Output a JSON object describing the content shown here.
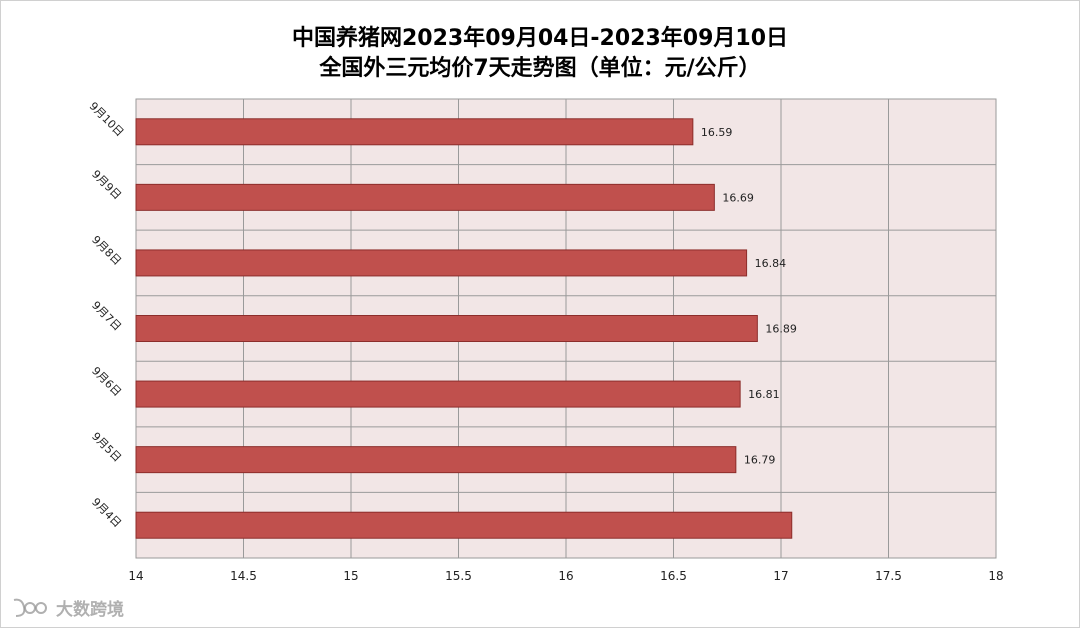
{
  "chart_data": {
    "type": "bar",
    "orientation": "horizontal",
    "title_lines": [
      "中国养猪网2023年09月04日-2023年09月10日",
      "全国外三元均价7天走势图（单位：元/公斤）"
    ],
    "categories": [
      "9月10日",
      "9月9日",
      "9月8日",
      "9月7日",
      "9月6日",
      "9月5日",
      "9月4日"
    ],
    "values": [
      16.59,
      16.69,
      16.84,
      16.89,
      16.81,
      16.79,
      17.05
    ],
    "data_labels": [
      "16.59",
      "16.69",
      "16.84",
      "16.89",
      "16.81",
      "16.79",
      ""
    ],
    "xlim": [
      14,
      18
    ],
    "x_ticks": [
      "14",
      "14.5",
      "15",
      "15.5",
      "16",
      "16.5",
      "17",
      "17.5",
      "18"
    ],
    "grid": true,
    "legend": "none",
    "colors": {
      "bar": "#c0504d",
      "bar_border": "#8c2d2b",
      "plot_background": "#f2e6e6",
      "gridline": "#9a9a9a"
    }
  },
  "watermark": {
    "text": "大数跨境",
    "icon": "logo-icon"
  }
}
